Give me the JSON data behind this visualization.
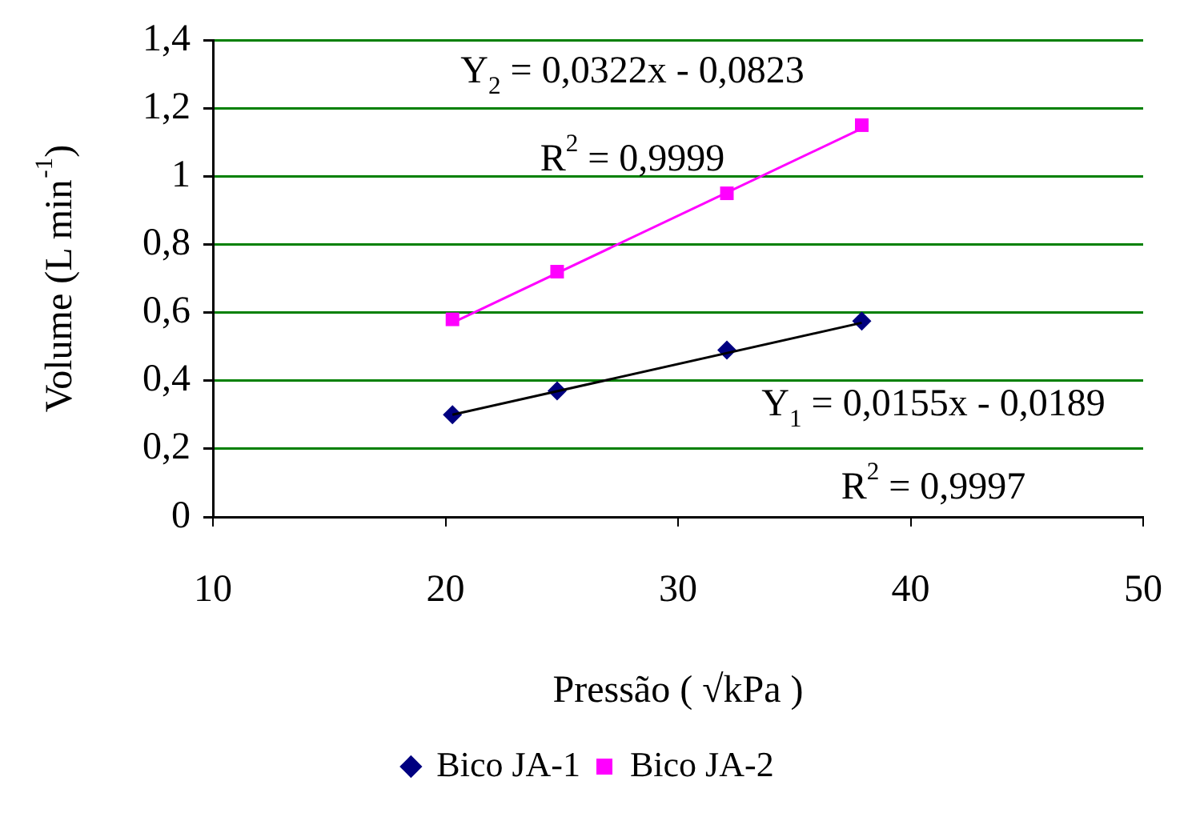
{
  "chart_data": {
    "type": "scatter",
    "xlabel": "Pressão ( √kPa )",
    "ylabel": "Volume (L min$^{-1}$)",
    "xlim": [
      10,
      50
    ],
    "xticks": [
      10,
      20,
      30,
      40,
      50
    ],
    "ylim": [
      0,
      1.4
    ],
    "yticks": [
      0,
      {
        "value": 0.2,
        "label": "0,2"
      },
      {
        "value": 0.4,
        "label": "0,4"
      },
      {
        "value": 0.6,
        "label": "0,6"
      },
      {
        "value": 0.8,
        "label": "0,8"
      },
      1,
      {
        "value": 1.2,
        "label": "1,2"
      },
      {
        "value": 1.4,
        "label": "1,4"
      }
    ],
    "grid": "y",
    "legend": "bottom",
    "series": [
      {
        "name": "Bico JA-1",
        "marker": "diamond",
        "color": "#000080",
        "x": [
          20.3,
          24.8,
          32.1,
          37.9
        ],
        "values": [
          0.3,
          0.37,
          0.49,
          0.575
        ]
      },
      {
        "name": "Bico JA-2",
        "marker": "square",
        "color": "#ff00ff",
        "x": [
          20.3,
          24.8,
          32.1,
          37.9
        ],
        "values": [
          0.58,
          0.72,
          0.95,
          1.15
        ]
      },
      {
        "type": "line",
        "marker": "none",
        "color": "#000000",
        "x": [
          20.3,
          37.9
        ],
        "values": [
          0.3,
          0.57
        ]
      },
      {
        "type": "line",
        "marker": "none",
        "color": "#ff00ff",
        "x": [
          20.3,
          37.9
        ],
        "values": [
          0.57,
          1.14
        ]
      }
    ],
    "annotations": [
      "Y$_{2}$ = 0,0322x - 0,0823",
      "R$^{2}$ = 0,9999",
      "Y$_{1}$ = 0,0155x - 0,0189",
      "R$^{2}$ = 0,9997"
    ]
  }
}
